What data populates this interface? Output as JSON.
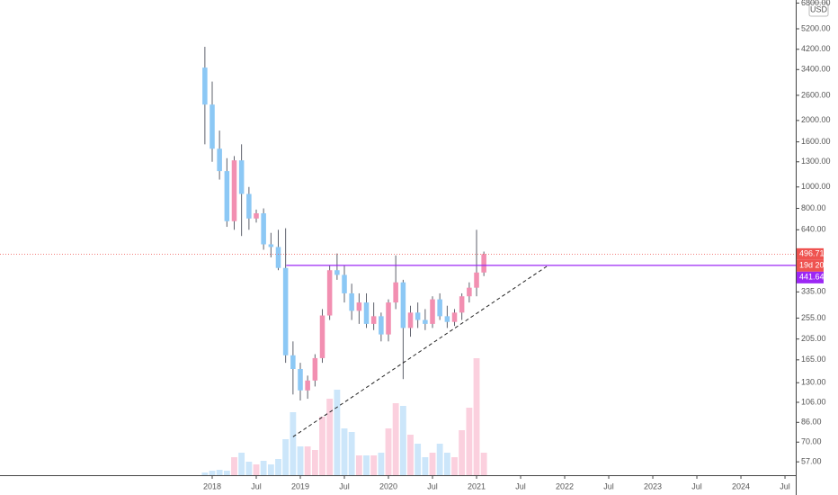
{
  "chart_data": {
    "type": "candlestick",
    "log_scale": true,
    "currency": "USD",
    "up_color": "#f28fb1",
    "down_color": "#8cc8f5",
    "volume_up_color": "#fbd0de",
    "volume_down_color": "#cce6fa",
    "x": [
      2017.917,
      2018,
      2018.083,
      2018.167,
      2018.25,
      2018.333,
      2018.417,
      2018.5,
      2018.583,
      2018.667,
      2018.75,
      2018.833,
      2018.917,
      2019,
      2019.083,
      2019.167,
      2019.25,
      2019.333,
      2019.417,
      2019.5,
      2019.583,
      2019.667,
      2019.75,
      2019.833,
      2019.917,
      2020,
      2020.083,
      2020.167,
      2020.25,
      2020.333,
      2020.417,
      2020.5,
      2020.583,
      2020.667,
      2020.75,
      2020.833,
      2020.917,
      2021,
      2021.083
    ],
    "open": [
      3470,
      2360,
      1490,
      1180,
      700,
      1320,
      930,
      720,
      760,
      550,
      535,
      430,
      173,
      150,
      120,
      133,
      168,
      262,
      420,
      400,
      330,
      275,
      300,
      240,
      260,
      215,
      300,
      370,
      230,
      270,
      250,
      240,
      310,
      260,
      245,
      270,
      320,
      350,
      410
    ],
    "high": [
      4310,
      3000,
      1800,
      1350,
      1380,
      1560,
      1000,
      790,
      800,
      620,
      640,
      650,
      200,
      160,
      140,
      175,
      280,
      440,
      500,
      440,
      365,
      330,
      330,
      300,
      270,
      310,
      490,
      380,
      290,
      300,
      280,
      320,
      330,
      290,
      280,
      330,
      370,
      640,
      510
    ],
    "low": [
      1560,
      1300,
      1080,
      660,
      640,
      600,
      640,
      690,
      520,
      480,
      420,
      160,
      115,
      108,
      110,
      125,
      160,
      250,
      380,
      300,
      250,
      240,
      230,
      225,
      200,
      200,
      280,
      135,
      210,
      230,
      225,
      230,
      250,
      230,
      235,
      250,
      300,
      320,
      395
    ],
    "close": [
      2360,
      1490,
      1180,
      700,
      1320,
      930,
      720,
      760,
      550,
      535,
      430,
      173,
      150,
      120,
      133,
      168,
      262,
      420,
      400,
      330,
      275,
      300,
      240,
      260,
      215,
      300,
      370,
      230,
      270,
      250,
      240,
      310,
      260,
      245,
      270,
      320,
      350,
      410,
      496.71
    ],
    "volume": [
      3,
      5,
      6,
      5,
      20,
      25,
      15,
      12,
      16,
      12,
      18,
      40,
      70,
      32,
      32,
      28,
      65,
      85,
      95,
      52,
      48,
      22,
      22,
      22,
      25,
      52,
      80,
      77,
      45,
      35,
      20,
      25,
      35,
      25,
      20,
      50,
      75,
      130,
      25
    ],
    "xlim": [
      2015.592,
      2024.622
    ],
    "xticks": [
      2018,
      {
        "value": 2018.5,
        "label": "Jul"
      },
      2019,
      {
        "value": 2019.5,
        "label": "Jul"
      },
      2020,
      {
        "value": 2020.5,
        "label": "Jul"
      },
      2021,
      {
        "value": 2021.5,
        "label": "Jul"
      },
      2022,
      {
        "value": 2022.5,
        "label": "Jul"
      },
      2023,
      {
        "value": 2023.5,
        "label": "Jul"
      },
      2024,
      {
        "value": 2024.5,
        "label": "Jul"
      }
    ],
    "ylim": [
      51,
      7020
    ],
    "yticks": [
      {
        "value": 6800,
        "label": "6800.00"
      },
      {
        "value": 5200,
        "label": "5200.00"
      },
      {
        "value": 4200,
        "label": "4200.00"
      },
      {
        "value": 3400,
        "label": "3400.00"
      },
      {
        "value": 2600,
        "label": "2600.00"
      },
      {
        "value": 2000,
        "label": "2000.00"
      },
      {
        "value": 1600,
        "label": "1600.00"
      },
      {
        "value": 1300,
        "label": "1300.00"
      },
      {
        "value": 1000,
        "label": "1000.00"
      },
      {
        "value": 800,
        "label": "800.00"
      },
      {
        "value": 640,
        "label": "640.00"
      },
      {
        "value": 335,
        "label": "335.00"
      },
      {
        "value": 255,
        "label": "255.00"
      },
      {
        "value": 205,
        "label": "205.00"
      },
      {
        "value": 165,
        "label": "165.00"
      },
      {
        "value": 130,
        "label": "130.00"
      },
      {
        "value": 106,
        "label": "106.00"
      },
      {
        "value": 86,
        "label": "86.00"
      },
      {
        "value": 70,
        "label": "70.00"
      },
      {
        "value": 57,
        "label": "57.00"
      }
    ],
    "last_price": 496.71,
    "countdown": "19d 20h",
    "horizontal_line": {
      "value": 441.64,
      "x_start": 2018.84,
      "color": "#9c27f5"
    },
    "trendline": {
      "x": [
        2018.917,
        2021.796
      ],
      "y": [
        74,
        437
      ]
    }
  }
}
